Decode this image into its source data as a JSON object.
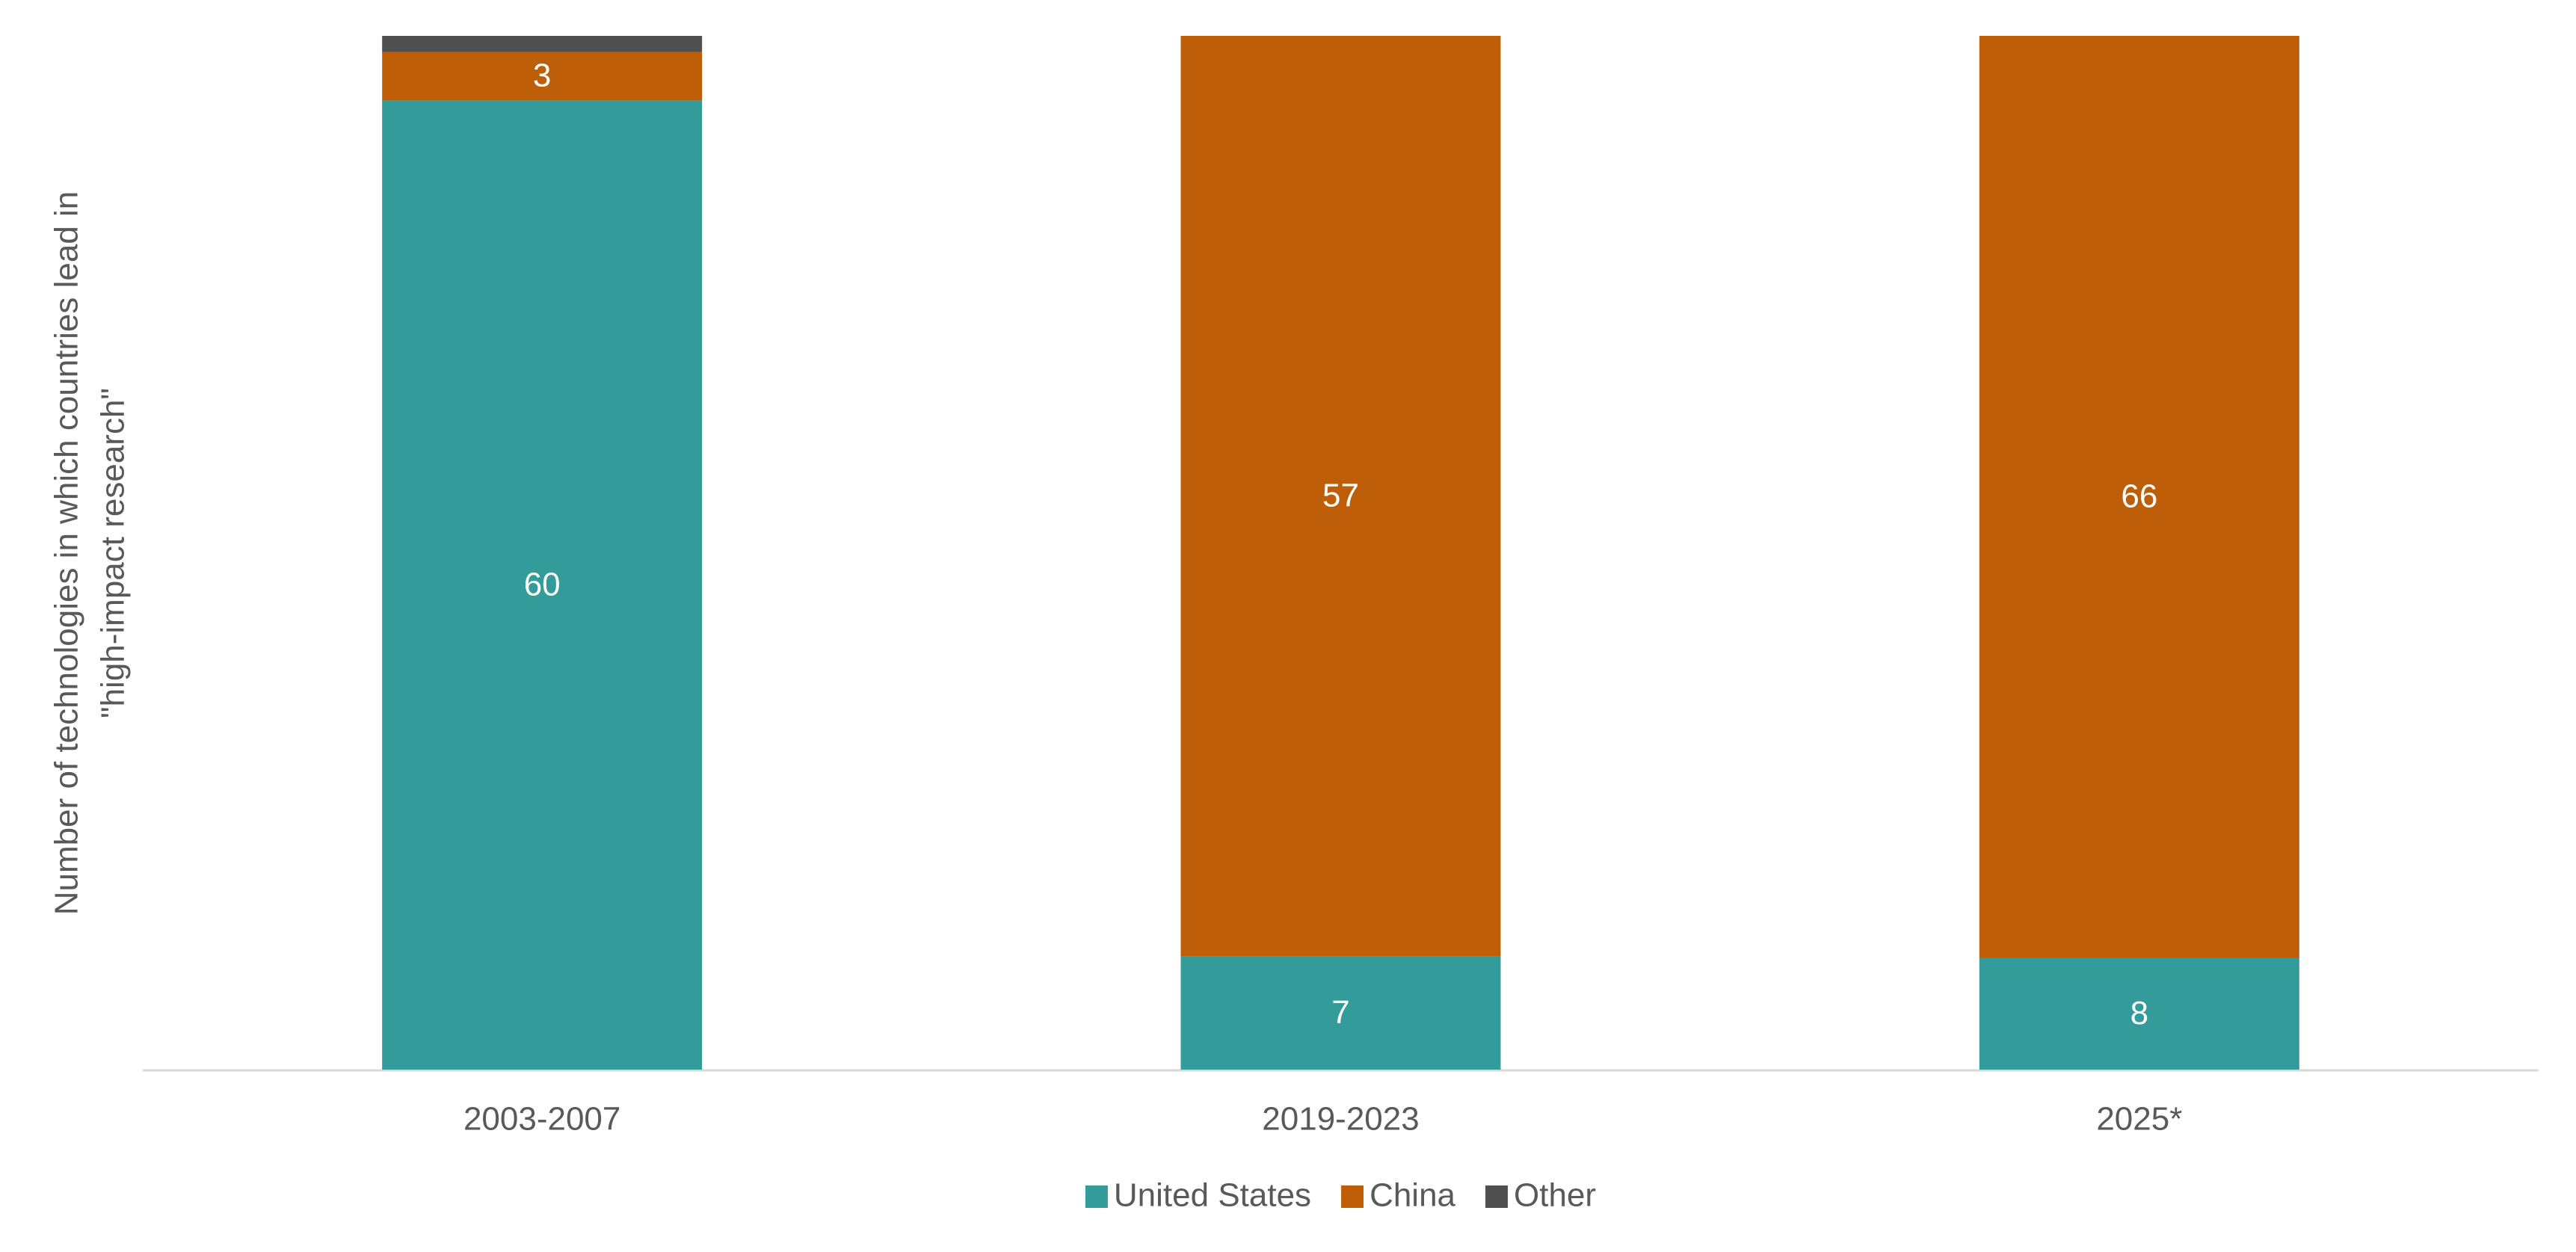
{
  "chart_data": {
    "type": "stacked_bar_percent",
    "y_label": [
      "Number of technologies in which countries lead in",
      "\"high-impact research\""
    ],
    "categories": [
      "2003-2007",
      "2019-2023",
      "2025*"
    ],
    "series": [
      {
        "name": "United States",
        "color": "#339b99",
        "values": [
          60,
          7,
          8
        ],
        "data_labels": true
      },
      {
        "name": "China",
        "color": "#bf5e09",
        "values": [
          3,
          57,
          66
        ],
        "data_labels": true
      },
      {
        "name": "Other",
        "color": "#505050",
        "values": [
          1,
          0,
          0
        ],
        "data_labels": false
      }
    ],
    "legend": "bottom"
  }
}
